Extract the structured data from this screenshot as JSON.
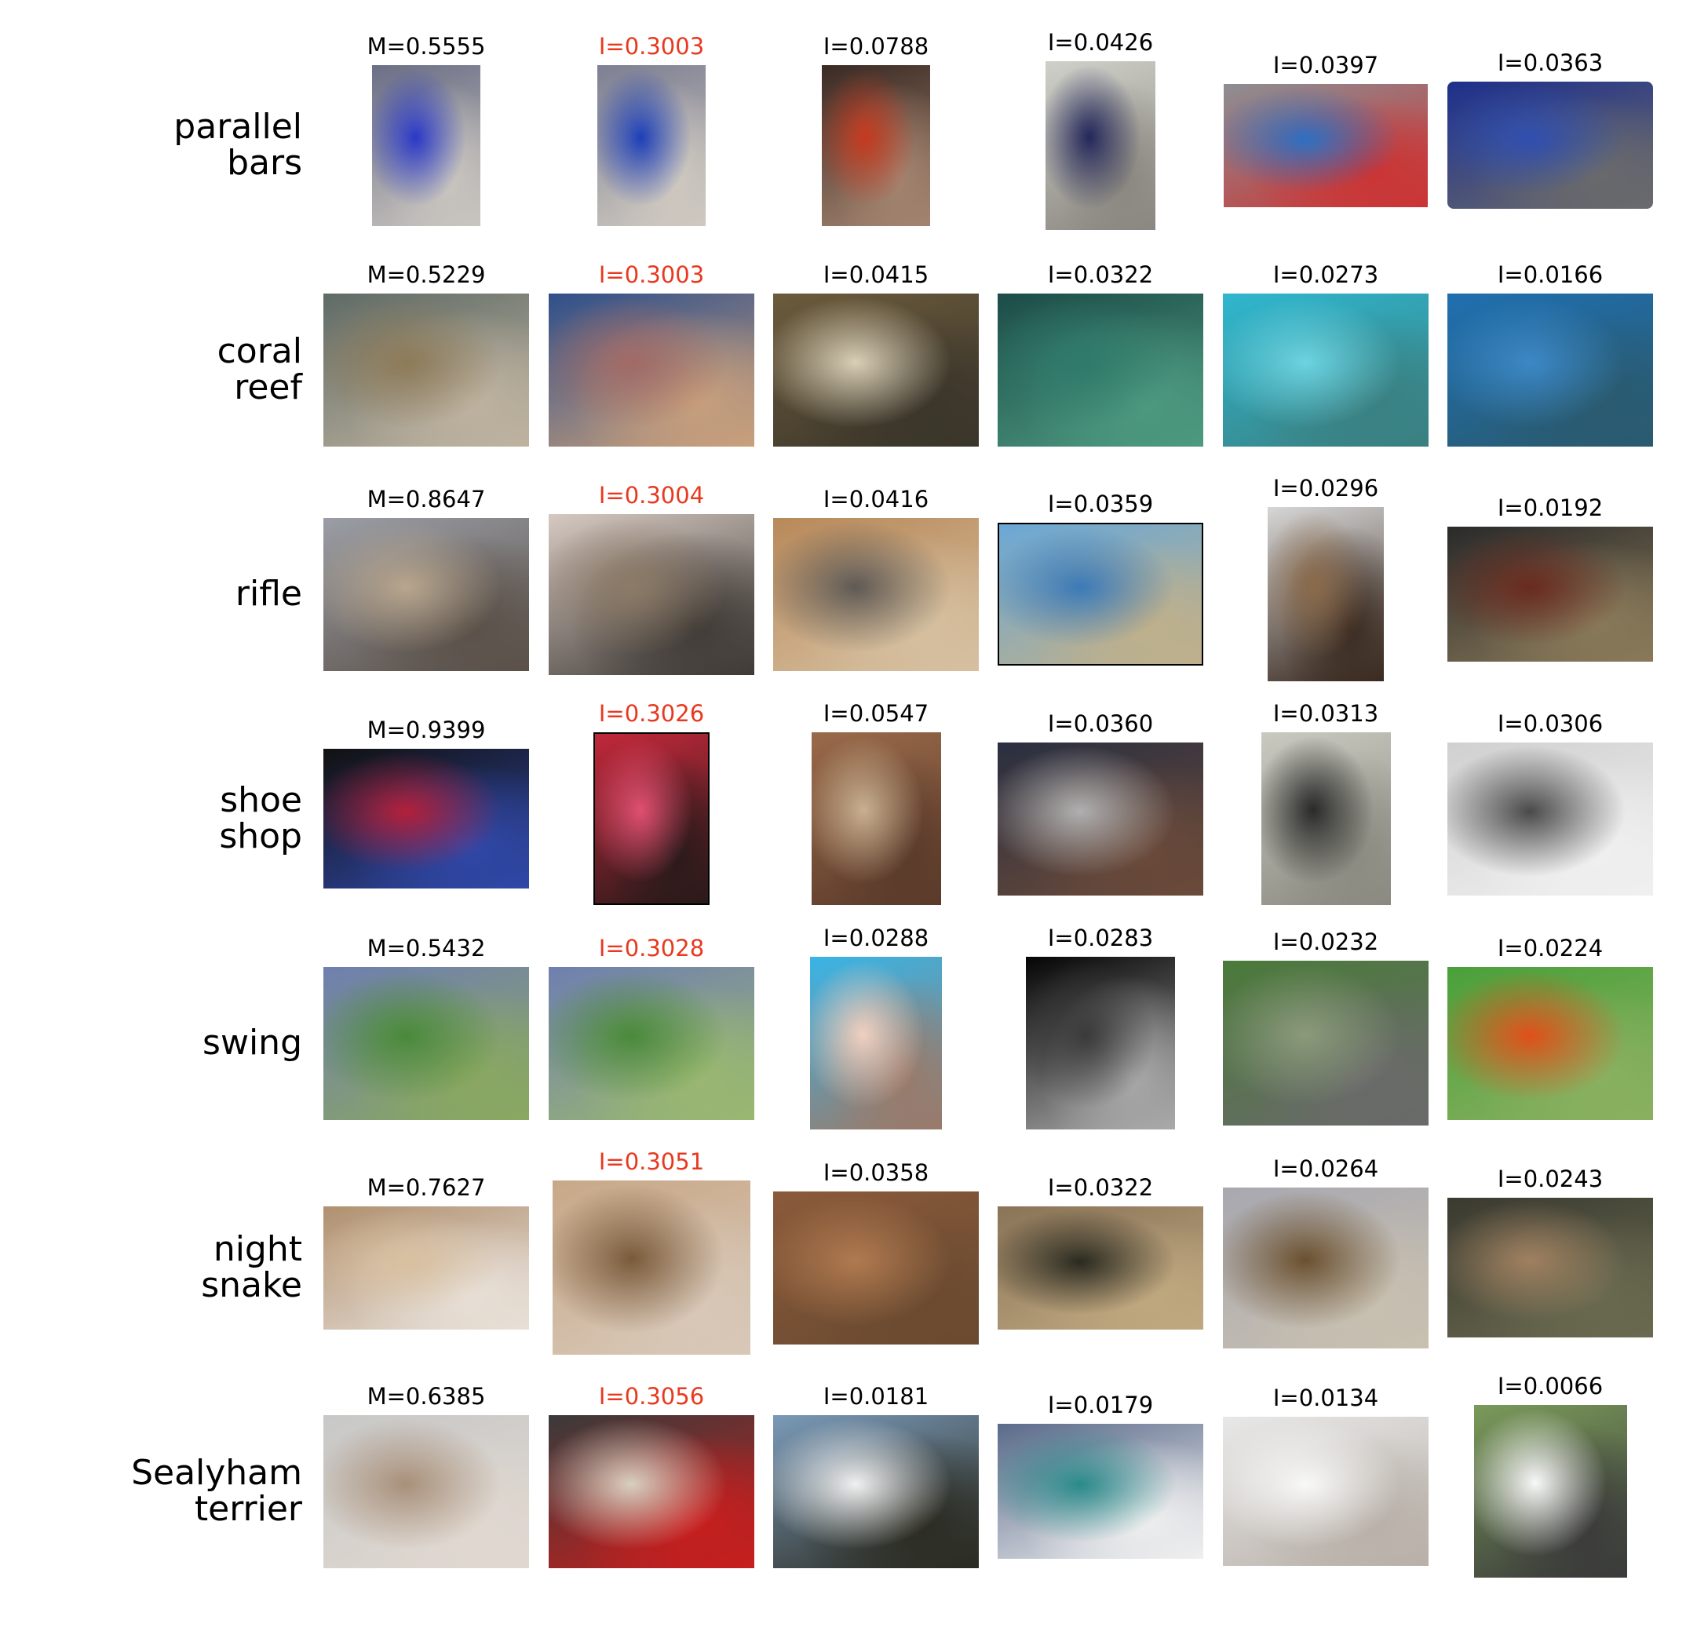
{
  "rows": [
    {
      "label": "parallel\nbars",
      "cells": [
        {
          "score": "M=0.5555",
          "highlight": false,
          "thumb": "photo: gymnast in blue on horizontal bar (stock photo)"
        },
        {
          "score": "I=0.3003",
          "highlight": true,
          "thumb": "photo: gymnast on bar (stock photo)"
        },
        {
          "score": "I=0.0788",
          "highlight": false,
          "thumb": "photo: muscular athlete on parallel bars"
        },
        {
          "score": "I=0.0426",
          "highlight": false,
          "thumb": "photo: man standing in lab"
        },
        {
          "score": "I=0.0397",
          "highlight": false,
          "thumb": "photo: gymnast in arena"
        },
        {
          "score": "I=0.0363",
          "highlight": false,
          "thumb": "photo: gym with blue mats"
        }
      ]
    },
    {
      "label": "coral\nreef",
      "cells": [
        {
          "score": "M=0.5229",
          "highlight": false,
          "thumb": "photo: table coral"
        },
        {
          "score": "I=0.3003",
          "highlight": true,
          "thumb": "photo: pink coral"
        },
        {
          "score": "I=0.0415",
          "highlight": false,
          "thumb": "photo: branching coral"
        },
        {
          "score": "I=0.0322",
          "highlight": false,
          "thumb": "photo: green reef"
        },
        {
          "score": "I=0.0273",
          "highlight": false,
          "thumb": "photo: striped fish in blue water"
        },
        {
          "score": "I=0.0166",
          "highlight": false,
          "thumb": "photo: reef wall"
        }
      ]
    },
    {
      "label": "rifle",
      "cells": [
        {
          "score": "M=0.8647",
          "highlight": false,
          "thumb": "photo: people shooting in desert"
        },
        {
          "score": "I=0.3004",
          "highlight": true,
          "thumb": "photo: shooters at dusk"
        },
        {
          "score": "I=0.0416",
          "highlight": false,
          "thumb": "photo: guns on wall"
        },
        {
          "score": "I=0.0359",
          "highlight": false,
          "thumb": "photo: man with cowboy hat holding gun"
        },
        {
          "score": "I=0.0296",
          "highlight": false,
          "thumb": "photo: antique pistols"
        },
        {
          "score": "I=0.0192",
          "highlight": false,
          "thumb": "photo: rifle close-up"
        }
      ]
    },
    {
      "label": "shoe\nshop",
      "cells": [
        {
          "score": "M=0.9399",
          "highlight": false,
          "thumb": "photo: colorful slippers display"
        },
        {
          "score": "I=0.3026",
          "highlight": true,
          "thumb": "photo: red slippers"
        },
        {
          "score": "I=0.0547",
          "highlight": false,
          "thumb": "photo: shoe shelves"
        },
        {
          "score": "I=0.0360",
          "highlight": false,
          "thumb": "photo: shoe store interior"
        },
        {
          "score": "I=0.0313",
          "highlight": false,
          "thumb": "photo: woman seated in store"
        },
        {
          "score": "I=0.0306",
          "highlight": false,
          "thumb": "photo: shop front"
        }
      ]
    },
    {
      "label": "swing",
      "cells": [
        {
          "score": "M=0.5432",
          "highlight": false,
          "thumb": "photo: woman on swing in garden"
        },
        {
          "score": "I=0.3028",
          "highlight": true,
          "thumb": "photo: empty garden swing"
        },
        {
          "score": "I=0.0288",
          "highlight": false,
          "thumb": "photo: woman on swing, blue background"
        },
        {
          "score": "I=0.0283",
          "highlight": false,
          "thumb": "photo: swing at night"
        },
        {
          "score": "I=0.0232",
          "highlight": false,
          "thumb": "photo: person swinging outdoors"
        },
        {
          "score": "I=0.0224",
          "highlight": false,
          "thumb": "photo: orange swing set"
        }
      ]
    },
    {
      "label": "night\nsnake",
      "cells": [
        {
          "score": "M=0.7627",
          "highlight": false,
          "thumb": "photo: snake eating rodent"
        },
        {
          "score": "I=0.3051",
          "highlight": true,
          "thumb": "photo: snake and rodent"
        },
        {
          "score": "I=0.0358",
          "highlight": false,
          "thumb": "photo: snake on ground"
        },
        {
          "score": "I=0.0322",
          "highlight": false,
          "thumb": "photo: dark snake"
        },
        {
          "score": "I=0.0264",
          "highlight": false,
          "thumb": "photo: coiled snake"
        },
        {
          "score": "I=0.0243",
          "highlight": false,
          "thumb": "photo: rattlesnake"
        }
      ]
    },
    {
      "label": "Sealyham\nterrier",
      "cells": [
        {
          "score": "M=0.6385",
          "highlight": false,
          "thumb": "photo: terrier figurine"
        },
        {
          "score": "I=0.3056",
          "highlight": true,
          "thumb": "photo: figurine with soda can"
        },
        {
          "score": "I=0.0181",
          "highlight": false,
          "thumb": "photo: terrier at dog show"
        },
        {
          "score": "I=0.0179",
          "highlight": false,
          "thumb": "photo: grooming a dog"
        },
        {
          "score": "I=0.0134",
          "highlight": false,
          "thumb": "photo: white dog"
        },
        {
          "score": "I=0.0066",
          "highlight": false,
          "thumb": "photo: white terrier running"
        }
      ]
    }
  ],
  "colors": {
    "highlight": "#e8391f",
    "text": "#000000"
  }
}
